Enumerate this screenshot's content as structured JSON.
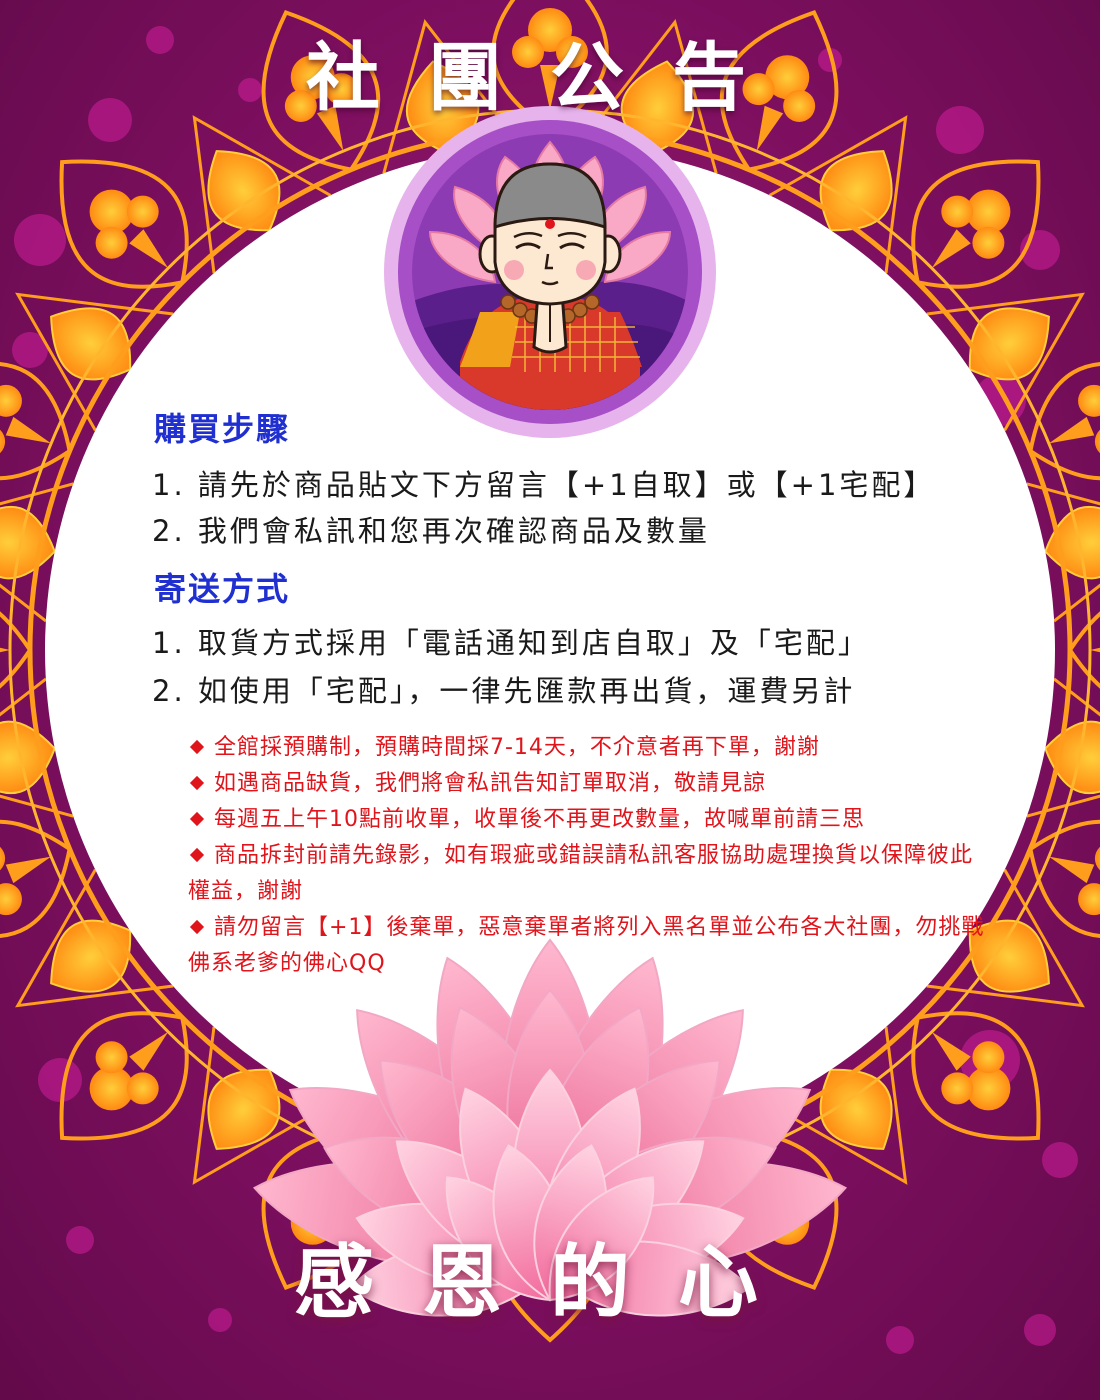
{
  "header": {
    "title": "社團公告"
  },
  "purchase": {
    "heading": "購買步驟",
    "steps": [
      {
        "num": "1.",
        "text": "請先於商品貼文下方留言【+1自取】或【+1宅配】"
      },
      {
        "num": "2.",
        "text": "我們會私訊和您再次確認商品及數量"
      }
    ]
  },
  "shipping": {
    "heading": "寄送方式",
    "steps": [
      {
        "num": "1.",
        "text": "取貨方式採用「電話通知到店自取」及「宅配」"
      },
      {
        "num": "2.",
        "text": "如使用「宅配」，一律先匯款再出貨，運費另計"
      }
    ]
  },
  "notes": [
    {
      "text": "全館採預購制，預購時間採7-14天，不介意者再下單，謝謝"
    },
    {
      "text": "如遇商品缺貨，我們將會私訊告知訂單取消，敬請見諒"
    },
    {
      "text": "每週五上午10點前收單，收單後不再更改數量，故喊單前請三思"
    },
    {
      "text": "商品拆封前請先錄影，如有瑕疵或錯誤請私訊客服協助處理換貨以保障彼此權益，謝謝"
    },
    {
      "text": "請勿留言【+1】後棄單，惡意棄單者將列入黑名單並公布各大社團，勿挑戰佛系老爹的佛心QQ"
    }
  ],
  "footer": {
    "title": "感恩的心"
  },
  "colors": {
    "background": "#7e0f60",
    "mandala_orange": "#ff9d1c",
    "circle": "#ffffff",
    "heading_blue": "#1f2fd0",
    "note_red": "#e0141b",
    "lotus_pink": "#f58cb3",
    "avatar_ring": "#a64fc6"
  },
  "icons": {
    "avatar": "meditating-monk-icon",
    "lotus": "lotus-flower-icon",
    "bullet": "diamond-icon"
  }
}
